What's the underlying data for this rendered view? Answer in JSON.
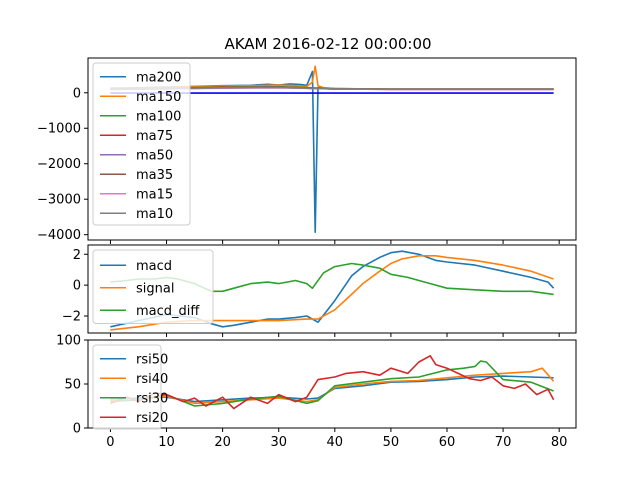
{
  "title": "AKAM 2016-02-12 00:00:00",
  "chart_data": [
    {
      "type": "line",
      "legend_position": "top-left",
      "ylim": [
        -4150,
        980
      ],
      "xlim": [
        -4,
        83
      ],
      "yticks": [
        0,
        -1000,
        -2000,
        -3000,
        -4000
      ],
      "series": [
        {
          "name": "ma200",
          "color": "#1f77b4",
          "x": [
            0,
            5,
            10,
            15,
            20,
            25,
            28,
            30,
            32,
            34,
            35,
            36,
            36.5,
            37,
            38,
            40,
            45,
            50,
            60,
            70,
            79
          ],
          "y": [
            130,
            140,
            160,
            180,
            200,
            210,
            240,
            220,
            250,
            230,
            210,
            600,
            -3930,
            150,
            120,
            110,
            100,
            100,
            100,
            100,
            100
          ]
        },
        {
          "name": "ma150",
          "color": "#ff7f0e",
          "x": [
            0,
            5,
            10,
            15,
            20,
            25,
            30,
            33,
            35,
            36,
            36.5,
            37,
            38,
            40,
            45,
            50,
            60,
            70,
            79
          ],
          "y": [
            120,
            130,
            150,
            170,
            190,
            200,
            220,
            200,
            180,
            300,
            750,
            200,
            140,
            120,
            110,
            100,
            100,
            100,
            100
          ]
        },
        {
          "name": "ma100",
          "color": "#2ca02c",
          "x": [
            0,
            10,
            20,
            30,
            40,
            50,
            60,
            70,
            79
          ],
          "y": [
            110,
            130,
            160,
            170,
            120,
            100,
            100,
            100,
            100
          ]
        },
        {
          "name": "ma75",
          "color": "#d62728",
          "x": [
            0,
            10,
            20,
            30,
            40,
            50,
            60,
            70,
            79
          ],
          "y": [
            100,
            120,
            150,
            160,
            110,
            100,
            100,
            100,
            100
          ]
        },
        {
          "name": "ma50",
          "color": "#9467bd",
          "x": [
            0,
            10,
            20,
            30,
            40,
            50,
            60,
            70,
            79
          ],
          "y": [
            95,
            110,
            140,
            150,
            105,
            95,
            95,
            95,
            95
          ]
        },
        {
          "name": "ma35",
          "color": "#8c564b",
          "x": [
            0,
            10,
            20,
            30,
            40,
            50,
            60,
            70,
            79
          ],
          "y": [
            100,
            120,
            140,
            150,
            110,
            100,
            100,
            100,
            100
          ]
        },
        {
          "name": "ma15",
          "color": "#e377c2",
          "x": [
            0,
            10,
            20,
            30,
            40,
            50,
            60,
            70,
            79
          ],
          "y": [
            95,
            110,
            130,
            140,
            105,
            95,
            95,
            95,
            95
          ]
        },
        {
          "name": "ma10",
          "color": "#7f7f7f",
          "x": [
            0,
            10,
            20,
            30,
            40,
            50,
            60,
            70,
            79
          ],
          "y": [
            100,
            120,
            140,
            150,
            110,
            100,
            100,
            100,
            100
          ]
        },
        {
          "name": "",
          "color": "#0000ff",
          "x": [
            0,
            79
          ],
          "y": [
            -10,
            -10
          ]
        }
      ]
    },
    {
      "type": "line",
      "legend_position": "top-left",
      "ylim": [
        -3.1,
        2.6
      ],
      "xlim": [
        -4,
        83
      ],
      "yticks": [
        2,
        0,
        -2
      ],
      "series": [
        {
          "name": "macd",
          "color": "#1f77b4",
          "x": [
            0,
            5,
            10,
            15,
            18,
            20,
            22,
            25,
            28,
            30,
            33,
            35,
            37,
            40,
            43,
            45,
            48,
            50,
            52,
            55,
            58,
            60,
            65,
            70,
            75,
            78,
            79
          ],
          "y": [
            -2.7,
            -2.3,
            -1.9,
            -2.1,
            -2.5,
            -2.7,
            -2.6,
            -2.4,
            -2.2,
            -2.2,
            -2.1,
            -2.0,
            -2.4,
            -1.0,
            0.6,
            1.2,
            1.8,
            2.1,
            2.2,
            2.0,
            1.6,
            1.5,
            1.3,
            0.9,
            0.5,
            0.2,
            -0.2
          ]
        },
        {
          "name": "signal",
          "color": "#ff7f0e",
          "x": [
            0,
            5,
            10,
            15,
            20,
            25,
            30,
            35,
            37,
            40,
            43,
            45,
            48,
            50,
            52,
            55,
            58,
            60,
            65,
            70,
            75,
            79
          ],
          "y": [
            -2.9,
            -2.7,
            -2.4,
            -2.3,
            -2.3,
            -2.3,
            -2.3,
            -2.2,
            -2.2,
            -1.6,
            -0.6,
            0.1,
            0.9,
            1.4,
            1.7,
            1.9,
            1.9,
            1.8,
            1.6,
            1.3,
            0.9,
            0.4
          ]
        },
        {
          "name": "macd_diff",
          "color": "#2ca02c",
          "x": [
            0,
            3,
            5,
            8,
            10,
            12,
            15,
            18,
            20,
            23,
            25,
            28,
            30,
            33,
            35,
            36,
            38,
            40,
            43,
            45,
            48,
            50,
            53,
            55,
            58,
            60,
            65,
            70,
            75,
            79
          ],
          "y": [
            0.2,
            0.3,
            0.4,
            0.4,
            0.5,
            0.4,
            0.1,
            -0.4,
            -0.4,
            -0.1,
            0.1,
            0.2,
            0.1,
            0.3,
            0.1,
            -0.2,
            0.8,
            1.2,
            1.4,
            1.3,
            1.1,
            0.7,
            0.5,
            0.3,
            0.0,
            -0.2,
            -0.3,
            -0.4,
            -0.4,
            -0.6
          ]
        }
      ]
    },
    {
      "type": "line",
      "legend_position": "top-left",
      "ylim": [
        0,
        100
      ],
      "xlim": [
        -4,
        83
      ],
      "yticks": [
        100,
        50,
        0
      ],
      "xticks": [
        0,
        10,
        20,
        30,
        40,
        50,
        60,
        70,
        80
      ],
      "series": [
        {
          "name": "rsi50",
          "color": "#1f77b4",
          "x": [
            0,
            5,
            10,
            15,
            20,
            25,
            30,
            35,
            37,
            40,
            45,
            50,
            55,
            60,
            65,
            70,
            75,
            79
          ],
          "y": [
            33,
            34,
            35,
            30,
            32,
            34,
            35,
            33,
            34,
            45,
            48,
            52,
            53,
            55,
            58,
            59,
            58,
            57
          ]
        },
        {
          "name": "rsi40",
          "color": "#ff7f0e",
          "x": [
            0,
            5,
            10,
            15,
            20,
            25,
            30,
            35,
            37,
            40,
            45,
            50,
            55,
            60,
            65,
            70,
            75,
            77,
            79
          ],
          "y": [
            31,
            32,
            36,
            28,
            30,
            32,
            34,
            30,
            32,
            46,
            50,
            53,
            54,
            57,
            60,
            62,
            64,
            68,
            53
          ]
        },
        {
          "name": "rsi30",
          "color": "#2ca02c",
          "x": [
            0,
            5,
            10,
            15,
            20,
            25,
            30,
            35,
            37,
            40,
            45,
            50,
            55,
            60,
            63,
            65,
            66,
            67,
            70,
            75,
            79
          ],
          "y": [
            30,
            32,
            38,
            25,
            28,
            33,
            36,
            28,
            31,
            48,
            52,
            56,
            58,
            66,
            68,
            70,
            76,
            75,
            55,
            52,
            42
          ]
        },
        {
          "name": "rsi20",
          "color": "#d62728",
          "x": [
            0,
            3,
            5,
            8,
            10,
            13,
            15,
            17,
            20,
            22,
            25,
            28,
            30,
            33,
            35,
            37,
            40,
            42,
            45,
            48,
            50,
            53,
            55,
            57,
            58,
            60,
            62,
            64,
            66,
            68,
            70,
            72,
            74,
            76,
            78,
            79
          ],
          "y": [
            28,
            35,
            30,
            40,
            38,
            30,
            34,
            25,
            35,
            22,
            35,
            28,
            38,
            30,
            35,
            55,
            58,
            62,
            64,
            60,
            68,
            62,
            75,
            82,
            72,
            68,
            62,
            56,
            54,
            58,
            48,
            45,
            50,
            38,
            44,
            32
          ]
        }
      ]
    }
  ]
}
